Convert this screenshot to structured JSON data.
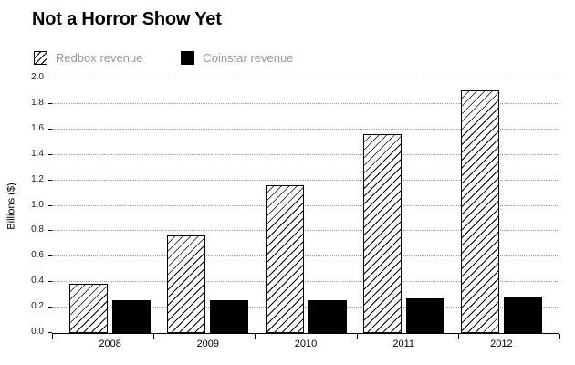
{
  "chart_data": {
    "type": "bar",
    "title": "Not a Horror Show Yet",
    "ylabel": "Billions ($)",
    "xlabel": "",
    "categories": [
      "2008",
      "2009",
      "2010",
      "2011",
      "2012"
    ],
    "series": [
      {
        "name": "Redbox revenue",
        "style": "hatched",
        "values": [
          0.39,
          0.77,
          1.16,
          1.56,
          1.91
        ]
      },
      {
        "name": "Coinstar revenue",
        "style": "solid-black",
        "values": [
          0.26,
          0.26,
          0.26,
          0.27,
          0.29
        ]
      }
    ],
    "ylim": [
      0,
      2.0
    ],
    "ytick_step": 0.2,
    "yticks": [
      "0.0",
      "0.2",
      "0.4",
      "0.6",
      "0.8",
      "1.0",
      "1.2",
      "1.4",
      "1.6",
      "1.8",
      "2.0"
    ],
    "grid": "dotted-horizontal",
    "legend_position": "top-left",
    "colors": {
      "bar_hatch": "#000000",
      "bar_fill_redbox": "#ffffff",
      "bar_fill_coinstar": "#000000",
      "legend_text": "#999999",
      "gridline": "#999999",
      "axis": "#000000"
    }
  }
}
